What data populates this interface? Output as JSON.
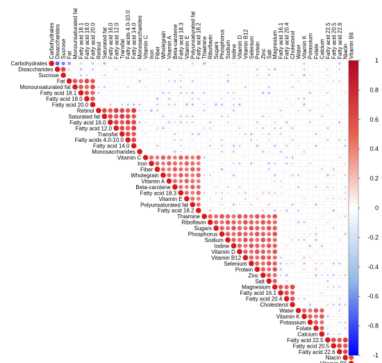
{
  "chart_data": {
    "type": "heatmap",
    "variables": [
      "Carbohydrates",
      "Disaccharides",
      "Sucrose",
      "Fat",
      "Monounsaturated fat",
      "Fatty acid 18.1",
      "Fatty acid 18.0",
      "Fatty acid 20.0",
      "Retinol",
      "Saturated fat",
      "Fatty acid 16.0",
      "Fatty acid 12.0",
      "Transfat",
      "Fatty acids 4.0-10.0",
      "Fatty acid 14.0",
      "Monosaccharides",
      "Vitamin C",
      "Iron",
      "Fiber",
      "Wholegrain",
      "Vitamin A",
      "Beta-carotene",
      "Fatty acid 18.3",
      "Vitamin E",
      "Polyunsaturated fat",
      "Fatty acid 18.2",
      "Thiamine",
      "Riboflavin",
      "Sugars",
      "Phosphorus",
      "Sodium",
      "Iodine",
      "Vitamin D",
      "Vitamin B12",
      "Selenium",
      "Protein",
      "Zinc",
      "Salt",
      "Magnesium",
      "Fatty acid 16.1",
      "Fatty acid 20.4",
      "Cholesterol",
      "Water",
      "Vitamin K",
      "Potassium",
      "Folate",
      "Calcium",
      "Fatty acid 22.5",
      "Fatty acid 20.5",
      "Fatty acid 22.6",
      "Niacin",
      "Vitamin B6"
    ],
    "blocks": [
      {
        "vars": [
          0,
          1,
          2
        ],
        "value": 0.85
      },
      {
        "vars": [
          3,
          4,
          5,
          6,
          7
        ],
        "value": 0.8
      },
      {
        "vars": [
          8,
          9,
          10,
          11,
          12,
          13,
          14
        ],
        "value": 0.85
      },
      {
        "vars": [
          16,
          17,
          18,
          19,
          20,
          21,
          22,
          23,
          24,
          25
        ],
        "value": 0.7
      },
      {
        "vars": [
          26,
          27,
          28,
          29,
          30,
          31,
          32,
          33,
          34,
          35,
          36,
          37,
          38
        ],
        "value": 0.75
      },
      {
        "vars": [
          38,
          39,
          40,
          41
        ],
        "value": 0.8
      },
      {
        "vars": [
          42,
          43,
          44,
          45,
          46
        ],
        "value": 0.75
      },
      {
        "vars": [
          47,
          48,
          49,
          50,
          51
        ],
        "value": 0.85
      }
    ],
    "negative_pairs": [
      {
        "a": 0,
        "b": 1,
        "value": -0.6
      },
      {
        "a": 0,
        "b": 2,
        "value": -0.5
      },
      {
        "a": 0,
        "b": 3,
        "value": -0.4
      },
      {
        "a": 0,
        "b": 9,
        "value": -0.3
      },
      {
        "a": 0,
        "b": 26,
        "value": -0.3
      }
    ],
    "color_range": [
      -1,
      1
    ],
    "colorbar_ticks": [
      1,
      0.8,
      0.6,
      0.4,
      0.2,
      0,
      -0.2,
      -0.4,
      -0.6,
      -0.8,
      -1
    ],
    "colors": {
      "positive": "#d7191c",
      "zero": "#ffffff",
      "negative": "#0000ff"
    },
    "layout": "upper-triangle",
    "legend": "colorbar-right"
  }
}
